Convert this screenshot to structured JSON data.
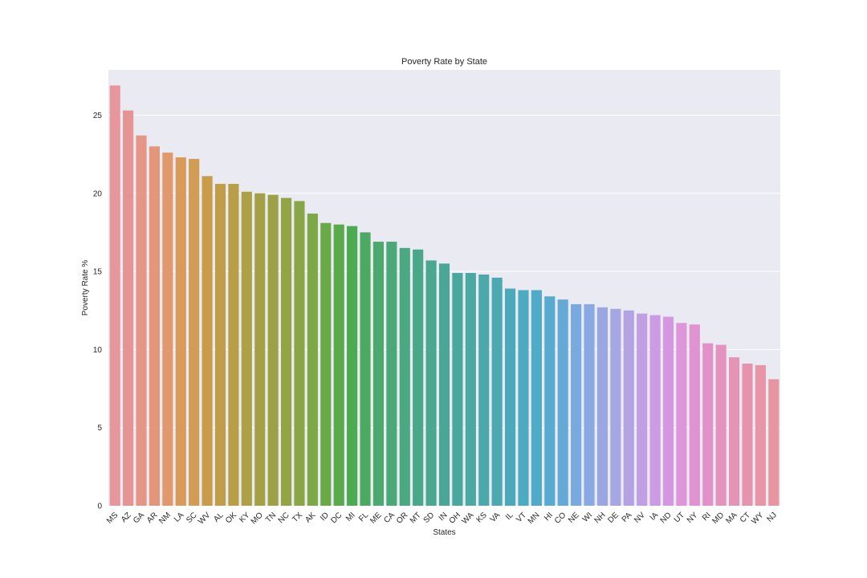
{
  "chart_data": {
    "type": "bar",
    "title": "Poverty Rate by State",
    "xlabel": "States",
    "ylabel": "Poverty Rate %",
    "ylim": [
      0,
      27.9
    ],
    "yticks": [
      0,
      5,
      10,
      15,
      20,
      25
    ],
    "grid": true,
    "categories": [
      "MS",
      "AZ",
      "GA",
      "AR",
      "NM",
      "LA",
      "SC",
      "WV",
      "AL",
      "OK",
      "KY",
      "MO",
      "TN",
      "NC",
      "TX",
      "AK",
      "ID",
      "DC",
      "MI",
      "FL",
      "ME",
      "CA",
      "OR",
      "MT",
      "SD",
      "IN",
      "OH",
      "WA",
      "KS",
      "VA",
      "IL",
      "VT",
      "MN",
      "HI",
      "CO",
      "NE",
      "WI",
      "NH",
      "DE",
      "PA",
      "NV",
      "IA",
      "ND",
      "UT",
      "NY",
      "RI",
      "MD",
      "MA",
      "CT",
      "WY",
      "NJ"
    ],
    "values": [
      26.9,
      25.3,
      23.7,
      23.0,
      22.6,
      22.3,
      22.2,
      21.1,
      20.6,
      20.6,
      20.1,
      20.0,
      19.9,
      19.7,
      19.5,
      18.7,
      18.1,
      18.0,
      17.9,
      17.5,
      16.9,
      16.9,
      16.5,
      16.4,
      15.7,
      15.5,
      14.9,
      14.9,
      14.8,
      14.6,
      13.9,
      13.8,
      13.8,
      13.4,
      13.2,
      12.9,
      12.9,
      12.7,
      12.6,
      12.5,
      12.3,
      12.2,
      12.1,
      11.7,
      11.6,
      10.4,
      10.3,
      9.5,
      9.1,
      9.0,
      8.1
    ]
  },
  "colors": {
    "plot_background": "#eaeaf2",
    "grid": "#ffffff",
    "text": "#262626",
    "bars": [
      "#e8969d",
      "#e69493",
      "#e59687",
      "#e3967a",
      "#df996c",
      "#d89b5c",
      "#d19c54",
      "#c99c4a",
      "#c09d48",
      "#b79e47",
      "#aea047",
      "#a5a045",
      "#9da145",
      "#93a445",
      "#89a647",
      "#7da846",
      "#6aa948",
      "#5aaa4c",
      "#4caa52",
      "#4ba962",
      "#4ba96e",
      "#4ba978",
      "#4aa981",
      "#4aa88a",
      "#4aa890",
      "#4aa797",
      "#49a89e",
      "#4ba9a4",
      "#4ba9ab",
      "#4ca9b2",
      "#4ca9b9",
      "#4caac1",
      "#4fabc7",
      "#57abd0",
      "#65aad7",
      "#78aadf",
      "#89a9e3",
      "#9aa7e3",
      "#a6a6e2",
      "#b3a3e3",
      "#c09fe3",
      "#cb9be3",
      "#d598e0",
      "#dc96d9",
      "#e093d1",
      "#e292c8",
      "#e493bf",
      "#e594b6",
      "#e694ae",
      "#e795a7",
      "#e796a1"
    ]
  }
}
